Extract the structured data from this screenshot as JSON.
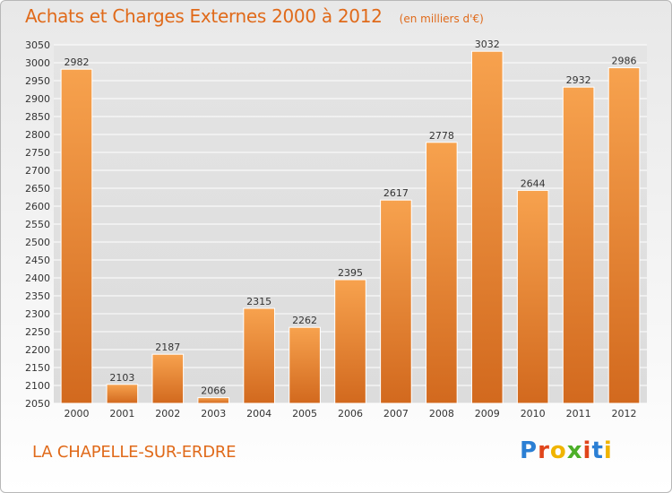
{
  "header": {
    "title": "Achats et Charges Externes 2000 à 2012",
    "subtitle": "(en milliers d'€)"
  },
  "footer": {
    "commune": "LA CHAPELLE-SUR-ERDRE",
    "logo_text": "Proxiti",
    "logo_colors": [
      "#2b7fd4",
      "#e0451b",
      "#f0b400",
      "#4caf28",
      "#e0451b",
      "#2b7fd4",
      "#f0b400"
    ]
  },
  "colors": {
    "bar_top": "#f7a24e",
    "bar_bottom": "#d2691e",
    "text": "#e06a1a",
    "grid": "#ffffff"
  },
  "chart_data": {
    "type": "bar",
    "title": "Achats et Charges Externes 2000 à 2012",
    "subtitle": "(en milliers d'€)",
    "xlabel": "",
    "ylabel": "",
    "categories": [
      "2000",
      "2001",
      "2002",
      "2003",
      "2004",
      "2005",
      "2006",
      "2007",
      "2008",
      "2009",
      "2010",
      "2011",
      "2012"
    ],
    "values": [
      2982,
      2103,
      2187,
      2066,
      2315,
      2262,
      2395,
      2617,
      2778,
      3032,
      2644,
      2932,
      2986
    ],
    "ylim": [
      2050,
      3050
    ],
    "yticks": [
      2050,
      2100,
      2150,
      2200,
      2250,
      2300,
      2350,
      2400,
      2450,
      2500,
      2550,
      2600,
      2650,
      2700,
      2750,
      2800,
      2850,
      2900,
      2950,
      3000,
      3050
    ],
    "grid": true,
    "data_labels": true
  }
}
